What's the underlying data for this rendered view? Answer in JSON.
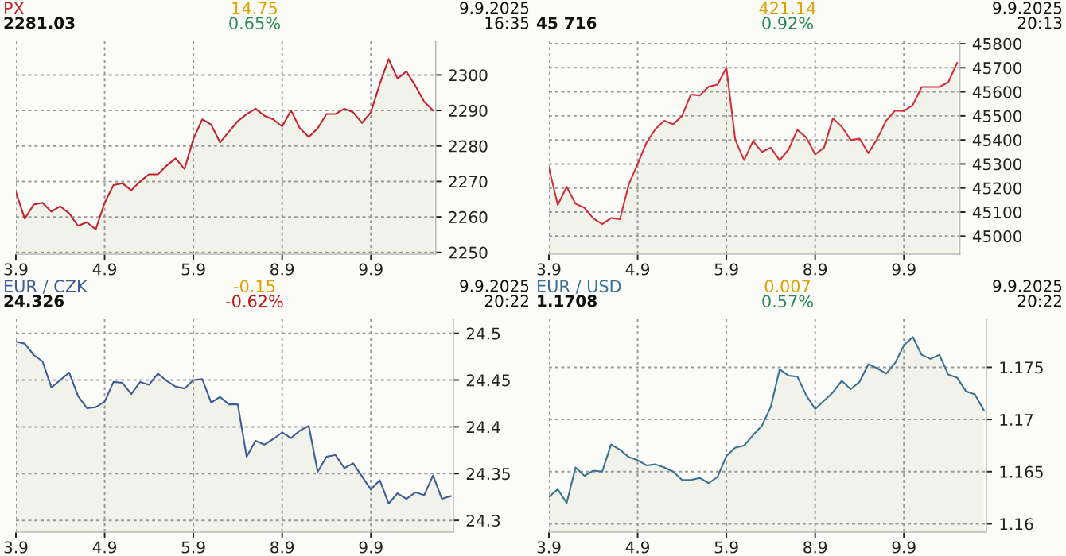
{
  "chart_data": [
    {
      "type": "area",
      "title": "PX",
      "subtitle": "2281.03",
      "annotations": [
        "14.75",
        "0.65%",
        "9.9.2025",
        "16:35"
      ],
      "categories": [
        "3.9",
        null,
        null,
        null,
        null,
        null,
        null,
        null,
        null,
        null,
        "4.9",
        null,
        null,
        null,
        null,
        null,
        null,
        null,
        null,
        null,
        "5.9",
        null,
        null,
        null,
        null,
        null,
        null,
        null,
        null,
        null,
        "8.9",
        null,
        null,
        null,
        null,
        null,
        null,
        null,
        null,
        null,
        "9.9",
        null,
        null,
        null,
        null,
        null,
        null,
        null
      ],
      "series": [
        {
          "color": "#c0252d",
          "values": [
            2267,
            2259.5,
            2263.5,
            2264,
            2261.5,
            2263,
            2261,
            2257.5,
            2258.5,
            2256.5,
            2264,
            2269,
            2269.5,
            2267.5,
            2270,
            2272,
            2272,
            2274.5,
            2276.5,
            2273.5,
            2282,
            2287.5,
            2286,
            2281,
            2284,
            2287,
            2289,
            2290.5,
            2288.5,
            2287.5,
            2285.5,
            2290,
            2285,
            2282.5,
            2285,
            2289,
            2289,
            2290.5,
            2289.5,
            2286.5,
            2289.5,
            2297.5,
            2304.5,
            2299,
            2301,
            2297,
            2292.5,
            2290
          ]
        }
      ],
      "ylim": [
        2249.5,
        2309.5
      ],
      "yticks": [
        2250,
        2260,
        2270,
        2280,
        2290,
        2300
      ],
      "grid": true
    },
    {
      "type": "area",
      "subtitle": "45 716",
      "annotations": [
        "421.14",
        "0.92%",
        "9.9.2025",
        "20:13"
      ],
      "categories": [
        "3.9",
        null,
        null,
        null,
        null,
        null,
        null,
        null,
        null,
        null,
        "4.9",
        null,
        null,
        null,
        null,
        null,
        null,
        null,
        null,
        null,
        "5.9",
        null,
        null,
        null,
        null,
        null,
        null,
        null,
        null,
        null,
        "8.9",
        null,
        null,
        null,
        null,
        null,
        null,
        null,
        null,
        null,
        "9.9",
        null,
        null,
        null,
        null,
        null,
        null
      ],
      "series": [
        {
          "color": "#d0303a",
          "values": [
            45284,
            45130,
            45205,
            45135,
            45118,
            45074,
            45050,
            45075,
            45070,
            45215,
            45300,
            45389,
            45445,
            45480,
            45465,
            45500,
            45589,
            45585,
            45622,
            45630,
            45700,
            45400,
            45316,
            45395,
            45350,
            45368,
            45315,
            45360,
            45442,
            45410,
            45340,
            45368,
            45490,
            45455,
            45400,
            45405,
            45345,
            45405,
            45480,
            45522,
            45520,
            45545,
            45620,
            45620,
            45620,
            45640,
            45720
          ]
        }
      ],
      "ylim": [
        44925,
        45810
      ],
      "yticks": [
        45000,
        45100,
        45200,
        45300,
        45400,
        45500,
        45600,
        45700,
        45800
      ],
      "grid": true
    },
    {
      "type": "area",
      "title": "EUR / CZK",
      "subtitle": "24.326",
      "annotations": [
        "-0.15",
        "-0.62%",
        "9.9.2025",
        "20:22"
      ],
      "categories": [
        "3.9",
        null,
        null,
        null,
        null,
        null,
        null,
        null,
        null,
        null,
        "4.9",
        null,
        null,
        null,
        null,
        null,
        null,
        null,
        null,
        null,
        "5.9",
        null,
        null,
        null,
        null,
        null,
        null,
        null,
        null,
        null,
        "8.9",
        null,
        null,
        null,
        null,
        null,
        null,
        null,
        null,
        null,
        "9.9",
        null,
        null,
        null,
        null,
        null,
        null,
        null,
        null,
        null
      ],
      "series": [
        {
          "color": "#3e5d95",
          "values": [
            24.491,
            24.489,
            24.477,
            24.47,
            24.442,
            24.45,
            24.458,
            24.433,
            24.42,
            24.421,
            24.427,
            24.448,
            24.447,
            24.435,
            24.448,
            24.445,
            24.457,
            24.449,
            24.443,
            24.441,
            24.45,
            24.451,
            24.426,
            24.432,
            24.424,
            24.424,
            24.368,
            24.385,
            24.381,
            24.387,
            24.394,
            24.388,
            24.396,
            24.401,
            24.352,
            24.368,
            24.37,
            24.356,
            24.361,
            24.347,
            24.333,
            24.343,
            24.318,
            24.329,
            24.323,
            24.33,
            24.327,
            24.348,
            24.323,
            24.326
          ]
        }
      ],
      "ylim": [
        24.2874,
        24.515
      ],
      "yticks": [
        24.3,
        24.35,
        24.4,
        24.45,
        24.5
      ],
      "grid": true
    },
    {
      "type": "area",
      "title": "EUR / USD",
      "subtitle": "1.1708",
      "annotations": [
        "0.007",
        "0.57%",
        "9.9.2025",
        "20:22"
      ],
      "categories": [
        "3.9",
        null,
        null,
        null,
        null,
        null,
        null,
        null,
        null,
        null,
        "4.9",
        null,
        null,
        null,
        null,
        null,
        null,
        null,
        null,
        null,
        "5.9",
        null,
        null,
        null,
        null,
        null,
        null,
        null,
        null,
        null,
        "8.9",
        null,
        null,
        null,
        null,
        null,
        null,
        null,
        null,
        null,
        "9.9",
        null,
        null,
        null,
        null,
        null,
        null,
        null,
        null,
        null
      ],
      "series": [
        {
          "color": "#3a7191",
          "values": [
            1.1626,
            1.1633,
            1.162,
            1.1654,
            1.1646,
            1.1651,
            1.165,
            1.1676,
            1.1671,
            1.1664,
            1.1661,
            1.1656,
            1.1657,
            1.1654,
            1.165,
            1.1642,
            1.1642,
            1.1644,
            1.1639,
            1.1645,
            1.1665,
            1.1673,
            1.1675,
            1.1685,
            1.1694,
            1.1712,
            1.1748,
            1.1742,
            1.1741,
            1.1723,
            1.171,
            1.1718,
            1.1726,
            1.1737,
            1.1729,
            1.1736,
            1.1753,
            1.1749,
            1.1744,
            1.1754,
            1.1771,
            1.1779,
            1.1762,
            1.1758,
            1.1762,
            1.1743,
            1.174,
            1.1727,
            1.1724,
            1.1709
          ]
        }
      ],
      "ylim": [
        1.1592,
        1.1796
      ],
      "yticks": [
        1.16,
        1.165,
        1.17,
        1.175
      ],
      "grid": true
    }
  ]
}
